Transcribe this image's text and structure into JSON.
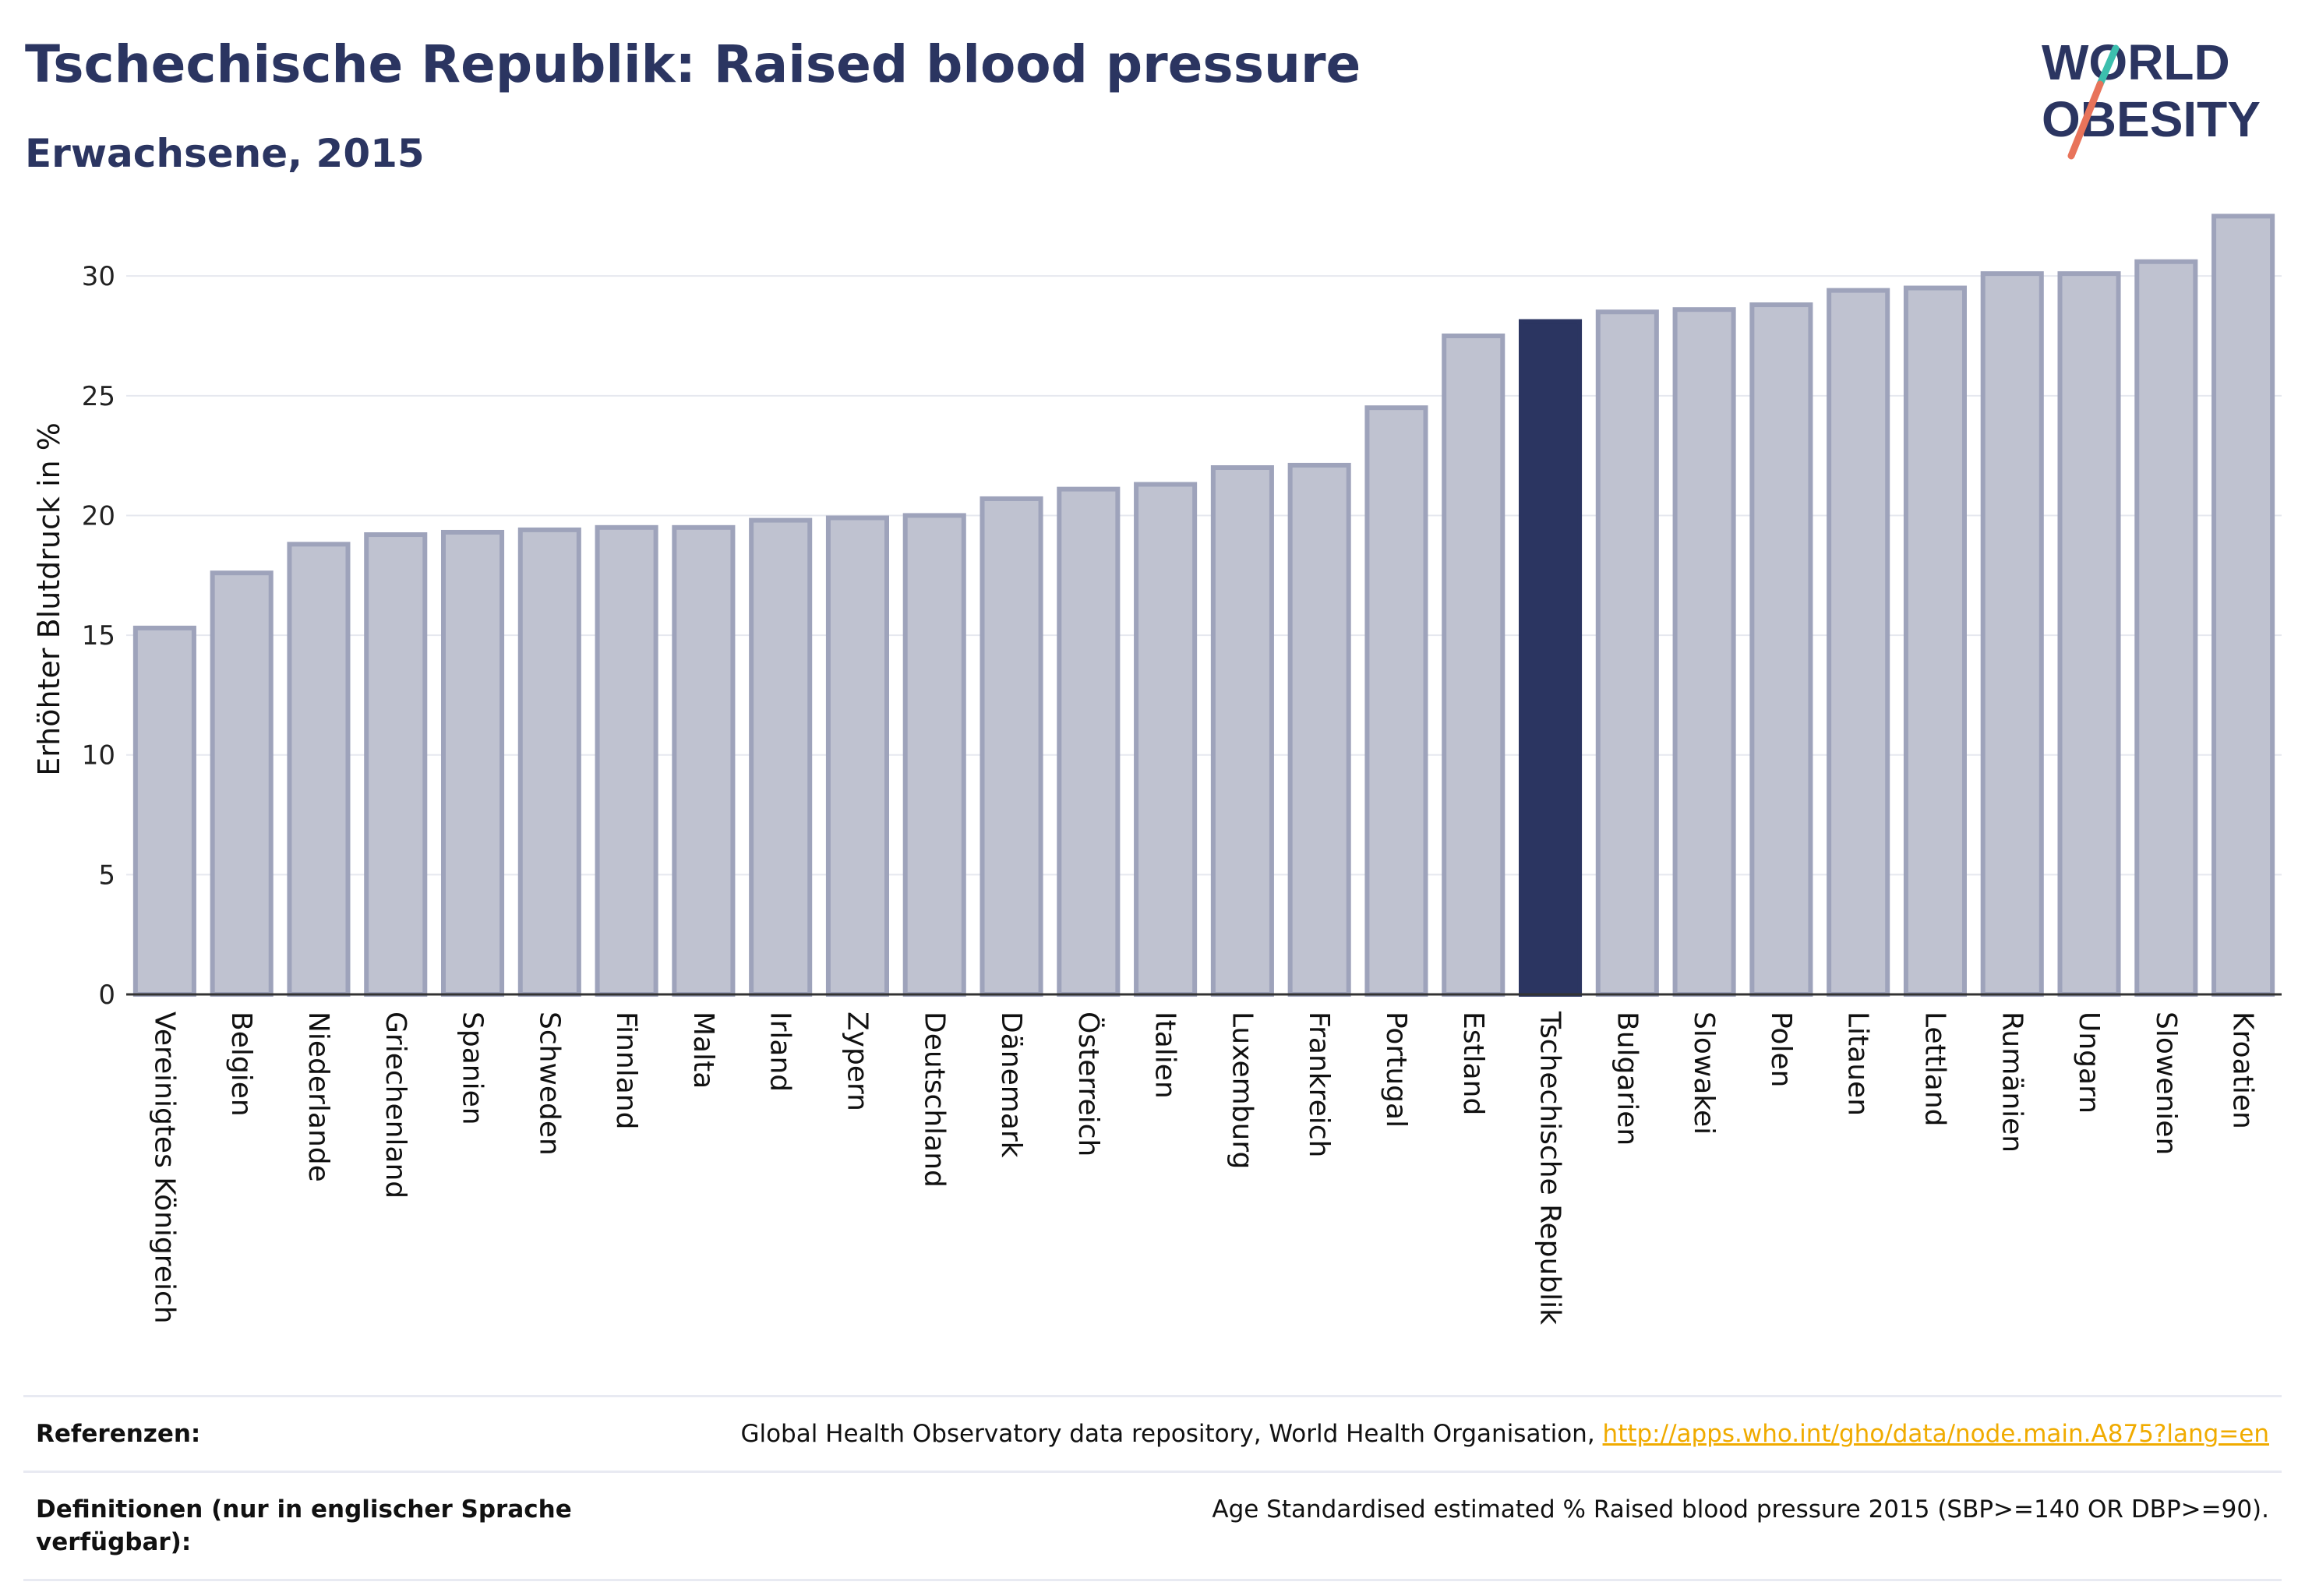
{
  "header": {
    "title": "Tschechische Republik: Raised blood pressure",
    "subtitle": "Erwachsene, 2015"
  },
  "logo": {
    "line1": "WORLD",
    "line2": "OBESITY",
    "accent_teal": "#3cbfae",
    "accent_coral": "#e8735a"
  },
  "colors": {
    "bar": "#bfc2d0",
    "bar_border": "#9ea3bb",
    "highlight": "#2b3561",
    "grid": "#e6e8ef"
  },
  "chart_data": {
    "type": "bar",
    "ylabel": "Erhöhter Blutdruck in %",
    "ylim": [
      0,
      33
    ],
    "yticks": [
      0,
      5,
      10,
      15,
      20,
      25,
      30
    ],
    "grid": true,
    "highlight": "Tschechische Republik",
    "categories": [
      "Vereinigtes Königreich",
      "Belgien",
      "Niederlande",
      "Griechenland",
      "Spanien",
      "Schweden",
      "Finnland",
      "Malta",
      "Irland",
      "Zypern",
      "Deutschland",
      "Dänemark",
      "Österreich",
      "Italien",
      "Luxemburg",
      "Frankreich",
      "Portugal",
      "Estland",
      "Tschechische Republik",
      "Bulgarien",
      "Slowakei",
      "Polen",
      "Litauen",
      "Lettland",
      "Rumänien",
      "Ungarn",
      "Slowenien",
      "Kroatien"
    ],
    "values": [
      15.3,
      17.6,
      18.8,
      19.2,
      19.3,
      19.4,
      19.5,
      19.5,
      19.8,
      19.9,
      20.0,
      20.7,
      21.1,
      21.3,
      22.0,
      22.1,
      24.5,
      27.5,
      28.1,
      28.5,
      28.6,
      28.8,
      29.4,
      29.5,
      30.1,
      30.1,
      30.6,
      32.5
    ]
  },
  "footer": {
    "ref_label": "Referenzen:",
    "ref_text": "Global Health Observatory data repository, World Health Organisation, ",
    "ref_link": "http://apps.who.int/gho/data/node.main.A875?lang=en",
    "def_label": "Definitionen (nur in englischer Sprache verfügbar):",
    "def_text": "Age Standardised estimated % Raised blood pressure 2015 (SBP>=140 OR DBP>=90)."
  }
}
